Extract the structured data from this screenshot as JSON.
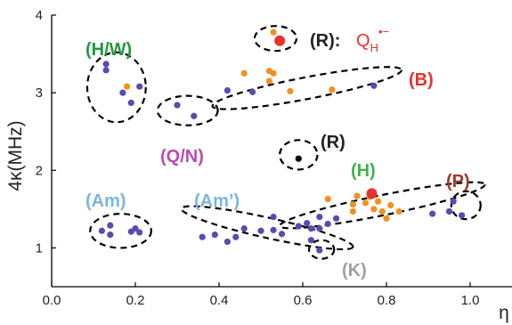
{
  "chart_data": {
    "type": "scatter",
    "xlabel": "η",
    "ylabel": "4κ(MHz)",
    "xlim": [
      0.0,
      1.1
    ],
    "ylim": [
      0.5,
      4.0
    ],
    "x_ticks": [
      "0.0",
      "0.2",
      "0.4",
      "0.6",
      "0.8",
      "1.0"
    ],
    "y_ticks": [
      "1",
      "2",
      "3",
      "4"
    ],
    "colors": {
      "purple": "#5b4ab1",
      "orange": "#f39020",
      "red": "#e8322c",
      "black": "#000000",
      "H/W_label": "#1f9a3e",
      "B_label": "#e8322c",
      "Q/N_label": "#b84cb0",
      "R_label": "#222222",
      "H_label": "#3eb34f",
      "P_label": "#a0382a",
      "Am_label": "#7ab5e3",
      "Am_prime_label": "#7ab5e3",
      "K_label": "#a0a0a0"
    },
    "series": [
      {
        "color": "purple",
        "points": [
          [
            0.13,
            3.37
          ],
          [
            0.13,
            3.29
          ],
          [
            0.17,
            3.0
          ],
          [
            0.21,
            3.08
          ],
          [
            0.19,
            2.87
          ],
          [
            0.3,
            2.84
          ],
          [
            0.34,
            2.7
          ],
          [
            0.42,
            3.03
          ],
          [
            0.48,
            3.01
          ],
          [
            0.77,
            3.09
          ],
          [
            0.12,
            1.22
          ],
          [
            0.14,
            1.17
          ],
          [
            0.14,
            1.29
          ],
          [
            0.19,
            1.21
          ],
          [
            0.2,
            1.25
          ],
          [
            0.21,
            1.2
          ],
          [
            0.36,
            1.14
          ],
          [
            0.39,
            1.17
          ],
          [
            0.42,
            1.08
          ],
          [
            0.44,
            1.14
          ],
          [
            0.46,
            1.25
          ],
          [
            0.5,
            1.22
          ],
          [
            0.53,
            1.23
          ],
          [
            0.55,
            1.18
          ],
          [
            0.59,
            1.28
          ],
          [
            0.61,
            1.32
          ],
          [
            0.62,
            1.25
          ],
          [
            0.64,
            1.25
          ],
          [
            0.66,
            1.31
          ],
          [
            0.68,
            1.38
          ],
          [
            0.53,
            1.4
          ],
          [
            0.64,
            1.4
          ],
          [
            0.62,
            1.1
          ],
          [
            0.64,
            0.97
          ],
          [
            0.91,
            1.44
          ],
          [
            0.95,
            1.47
          ],
          [
            0.98,
            1.42
          ],
          [
            0.96,
            1.6
          ]
        ]
      },
      {
        "color": "orange",
        "points": [
          [
            0.18,
            3.08
          ],
          [
            0.46,
            3.25
          ],
          [
            0.52,
            3.28
          ],
          [
            0.52,
            3.15
          ],
          [
            0.53,
            3.25
          ],
          [
            0.57,
            3.02
          ],
          [
            0.67,
            3.04
          ],
          [
            0.53,
            3.78
          ],
          [
            0.66,
            1.63
          ],
          [
            0.72,
            1.56
          ],
          [
            0.73,
            1.67
          ],
          [
            0.75,
            1.58
          ],
          [
            0.76,
            1.66
          ],
          [
            0.78,
            1.6
          ],
          [
            0.79,
            1.47
          ],
          [
            0.8,
            1.38
          ],
          [
            0.83,
            1.47
          ],
          [
            0.72,
            1.47
          ],
          [
            0.77,
            1.5
          ],
          [
            0.81,
            1.55
          ]
        ]
      },
      {
        "color": "red",
        "points": [
          [
            0.545,
            3.67
          ],
          [
            0.765,
            1.7
          ]
        ]
      },
      {
        "color": "black",
        "points": [
          [
            0.59,
            2.15
          ]
        ]
      }
    ],
    "ellipses": [
      {
        "cx": 0.155,
        "cy": 3.07,
        "rx": 0.07,
        "ry": 0.45,
        "rot": 0
      },
      {
        "cx": 0.325,
        "cy": 2.77,
        "rx": 0.072,
        "ry": 0.19,
        "rot": 0
      },
      {
        "cx": 0.535,
        "cy": 3.7,
        "rx": 0.05,
        "ry": 0.16,
        "rot": 0
      },
      {
        "cx": 0.59,
        "cy": 2.2,
        "rx": 0.045,
        "ry": 0.19,
        "rot": 0
      },
      {
        "cx": 0.165,
        "cy": 1.22,
        "rx": 0.073,
        "ry": 0.22,
        "rot": 0
      },
      {
        "cx": 0.645,
        "cy": 0.98,
        "rx": 0.03,
        "ry": 0.12,
        "rot": 0
      },
      {
        "cx": 0.61,
        "cy": 3.06,
        "rx": 0.23,
        "ry": 0.14,
        "rot": -0.19
      },
      {
        "cx": 0.515,
        "cy": 1.26,
        "rx": 0.21,
        "ry": 0.13,
        "rot": 0.22
      },
      {
        "cx": 0.79,
        "cy": 1.55,
        "rx": 0.25,
        "ry": 0.13,
        "rot": -0.2
      },
      {
        "cx": 0.99,
        "cy": 1.55,
        "rx": 0.035,
        "ry": 0.18,
        "rot": 0
      }
    ],
    "annotations": [
      {
        "key": "hw",
        "text": "(H/W)",
        "color": "H/W_label"
      },
      {
        "key": "r_prefix",
        "text": "(R):",
        "color": "R_label"
      },
      {
        "key": "qh",
        "text": "Q",
        "sub": "H",
        "sup": "•−",
        "color": "B_label"
      },
      {
        "key": "b",
        "text": "(B)",
        "color": "B_label"
      },
      {
        "key": "qn",
        "text": "(Q/N)",
        "color": "Q/N_label"
      },
      {
        "key": "r",
        "text": "(R)",
        "color": "R_label"
      },
      {
        "key": "h",
        "text": "(H)",
        "color": "H_label"
      },
      {
        "key": "p",
        "text": "(P)",
        "color": "P_label"
      },
      {
        "key": "am",
        "text": "(Am)",
        "color": "Am_label"
      },
      {
        "key": "amp",
        "text": "(Am’)",
        "color": "Am_prime_label"
      },
      {
        "key": "k",
        "text": "(K)",
        "color": "K_label"
      }
    ]
  }
}
